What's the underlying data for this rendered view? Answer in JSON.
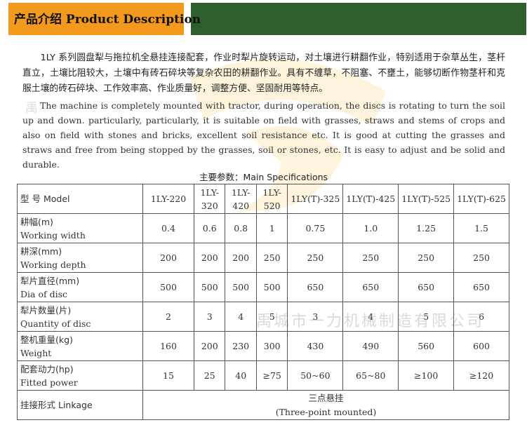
{
  "header": {
    "title": "产品介绍 Product Description"
  },
  "description": {
    "cn": "1LY 系列圆盘犁与拖拉机全悬挂连接配套，作业时犁片旋转运动，对土壤进行耕翻作业，特别适用于杂草丛生，茎杆直立，土壤比阻较大，土壤中有砖石碎块等复杂农田的耕翻作业。具有不缠草，不阻塞、不壅土，能够切断作物茎杆和克服土壤的砖石碎块、工作效率高、作业质量好，调整方便、坚固耐用等特点。",
    "en": "The machine is completely mounted with tractor, during operation, the discs is rotating to turn the soil up and down. particularly, particularly, it is suitable on field with grasses, straws and stems of crops and also on field with stones and bricks, excellent soil resistance etc. It is good at cutting the grasses and straws and free from being stopped by the grasses, soil or stones, etc. It is easy to adjust and be solid and durable."
  },
  "specs": {
    "title": "主要参数：Main Specifications",
    "model_label": "型 号 Model",
    "models": [
      "1LY-220",
      "1LY-320",
      "1LY-420",
      "1LY-520",
      "1LY(T)-325",
      "1LY(T)-425",
      "1LY(T)-525",
      "1LY(T)-625"
    ],
    "rows": [
      {
        "cn": "耕幅(m)",
        "en": "Working width",
        "values": [
          "0.4",
          "0.6",
          "0.8",
          "1",
          "0.75",
          "1.0",
          "1.25",
          "1.5"
        ]
      },
      {
        "cn": "耕深(mm)",
        "en": "Working depth",
        "values": [
          "200",
          "200",
          "200",
          "250",
          "250",
          "250",
          "250",
          "250"
        ]
      },
      {
        "cn": "犁片直径(mm)",
        "en": "Dia of disc",
        "values": [
          "500",
          "500",
          "500",
          "500",
          "650",
          "650",
          "650",
          "650"
        ]
      },
      {
        "cn": "犁片数量(片)",
        "en": "Quantity of disc",
        "values": [
          "2",
          "3",
          "4",
          "5",
          "3",
          "4",
          "5",
          "6"
        ]
      },
      {
        "cn": "整机重量(kg)",
        "en": "Weight",
        "values": [
          "160",
          "200",
          "230",
          "300",
          "430",
          "490",
          "560",
          "600"
        ]
      },
      {
        "cn": "配套动力(hp)",
        "en": "Fitted power",
        "values": [
          "15",
          "25",
          "40",
          "≥75",
          "50~60",
          "65~80",
          "≥100",
          "≥120"
        ]
      }
    ],
    "linkage": {
      "label": "挂接形式 Linkage",
      "value_cn": "三点悬挂",
      "value_en": "(Three-point mounted)"
    }
  },
  "watermark": {
    "text": "禹城市一力机械制造有限公司",
    "small": "禹"
  },
  "colors": {
    "orange": "#f39a1e",
    "green": "#2d5e2b"
  }
}
